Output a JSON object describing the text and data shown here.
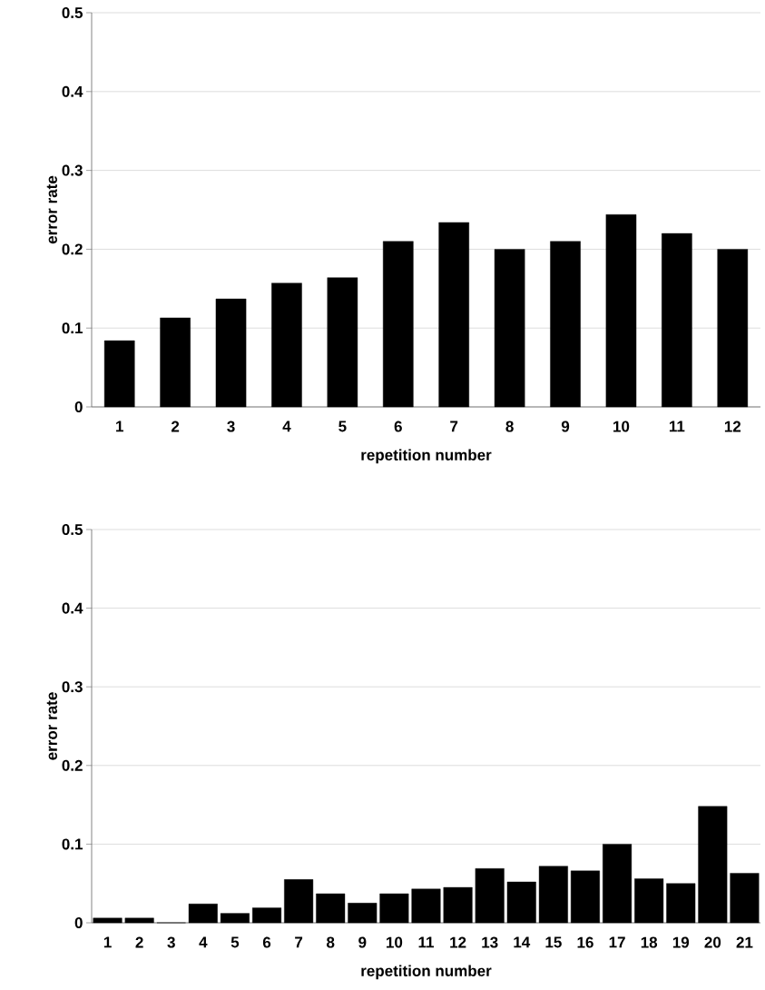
{
  "chart_data": [
    {
      "type": "bar",
      "xlabel": "repetition number",
      "ylabel": "error rate",
      "categories": [
        "1",
        "2",
        "3",
        "4",
        "5",
        "6",
        "7",
        "8",
        "9",
        "10",
        "11",
        "12"
      ],
      "values": [
        0.084,
        0.113,
        0.137,
        0.157,
        0.164,
        0.21,
        0.234,
        0.2,
        0.21,
        0.244,
        0.22,
        0.2
      ],
      "color": "#000000",
      "ylim": [
        0,
        0.5
      ],
      "yticks": [
        0,
        0.1,
        0.2,
        0.3,
        0.4,
        0.5
      ],
      "grid": "y"
    },
    {
      "type": "bar",
      "xlabel": "repetition number",
      "ylabel": "error rate",
      "categories": [
        "1",
        "2",
        "3",
        "4",
        "5",
        "6",
        "7",
        "8",
        "9",
        "10",
        "11",
        "12",
        "13",
        "14",
        "15",
        "16",
        "17",
        "18",
        "19",
        "20",
        "21"
      ],
      "values": [
        0.006,
        0.006,
        0,
        0.024,
        0.012,
        0.019,
        0.055,
        0.037,
        0.025,
        0.037,
        0.043,
        0.045,
        0.069,
        0.052,
        0.072,
        0.066,
        0.1,
        0.056,
        0.05,
        0.148,
        0.063
      ],
      "color": "#000000",
      "ylim": [
        0,
        0.5
      ],
      "yticks": [
        0,
        0.1,
        0.2,
        0.3,
        0.4,
        0.5
      ],
      "grid": "y"
    }
  ]
}
